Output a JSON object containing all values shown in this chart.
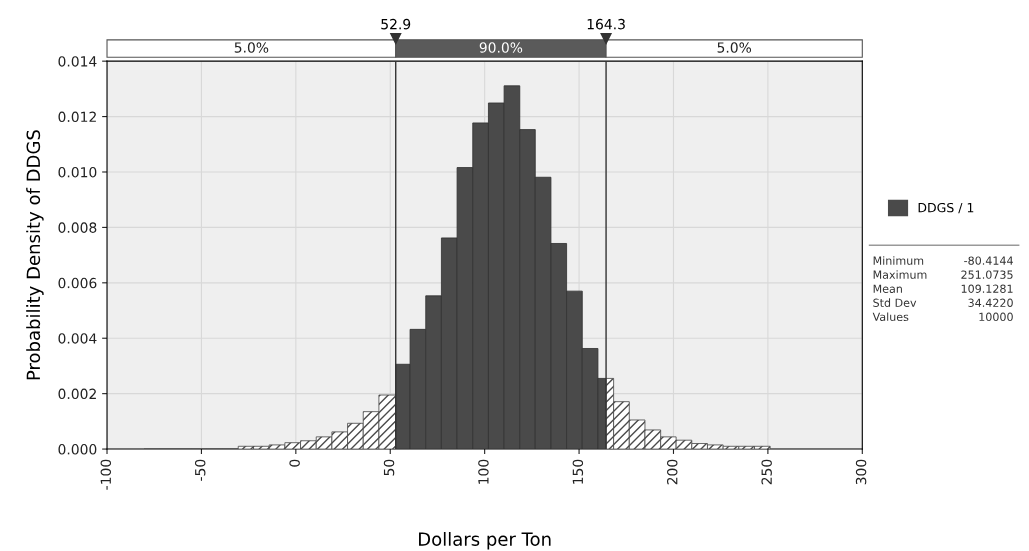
{
  "chart_data": {
    "type": "histogram",
    "xlabel": "Dollars per Ton",
    "ylabel": "Probability Density of DDGS",
    "bins": [
      -80.4,
      -72.1,
      -63.8,
      -55.5,
      -47.2,
      -38.9,
      -30.5,
      -22.4,
      -14.1,
      -5.8,
      2.5,
      10.8,
      19.1,
      27.4,
      35.7,
      44.0,
      52.9,
      60.5,
      68.8,
      77.1,
      85.4,
      93.7,
      102.0,
      110.3,
      118.6,
      126.8,
      135.1,
      143.4,
      151.7,
      160.0,
      164.3,
      168.3,
      176.6,
      184.9,
      193.2,
      201.4,
      209.7,
      218.0,
      226.3,
      234.6,
      242.9,
      251.2
    ],
    "series": [
      {
        "name": "DDGS / 1",
        "color": "#4a4a4a",
        "values": [
          0,
          0,
          0,
          0,
          0,
          0,
          0.0001,
          0.0001,
          0.00015,
          0.00023,
          0.0003,
          0.00044,
          0.00062,
          0.00093,
          0.00135,
          0.00195,
          0.00306,
          0.00432,
          0.00553,
          0.00762,
          0.01016,
          0.01177,
          0.01249,
          0.01311,
          0.01153,
          0.00981,
          0.00742,
          0.0057,
          0.00363,
          0.00255,
          0.00255,
          0.00171,
          0.00105,
          0.00069,
          0.00044,
          0.00032,
          0.0002,
          0.00015,
          0.0001,
          0.0001,
          0.0001
        ]
      }
    ],
    "xlim": [
      -100,
      300
    ],
    "xticks": [
      -100,
      -50,
      0,
      50,
      100,
      150,
      200,
      250,
      300
    ],
    "ylim": [
      0,
      0.014
    ],
    "yticks": [
      {
        "value": 0,
        "label": "0.000"
      },
      {
        "value": 0.002,
        "label": "0.002"
      },
      {
        "value": 0.004,
        "label": "0.004"
      },
      {
        "value": 0.006,
        "label": "0.006"
      },
      {
        "value": 0.008,
        "label": "0.008"
      },
      {
        "value": 0.01,
        "label": "0.010"
      },
      {
        "value": 0.012,
        "label": "0.012"
      },
      {
        "value": 0.014,
        "label": "0.014"
      }
    ],
    "ref_lines": [
      {
        "axis": "x",
        "value": 52.9,
        "label": "52.9"
      },
      {
        "axis": "x",
        "value": 164.3,
        "label": "164.3"
      }
    ],
    "annotations": [
      "5.0%",
      "90.0%",
      "5.0%",
      "Minimum\t-80.4144",
      "Maximum\t251.0735",
      "Mean\t109.1281",
      "Std Dev\t34.4220",
      "Values\t10000"
    ],
    "grid": true,
    "legend": "right"
  }
}
